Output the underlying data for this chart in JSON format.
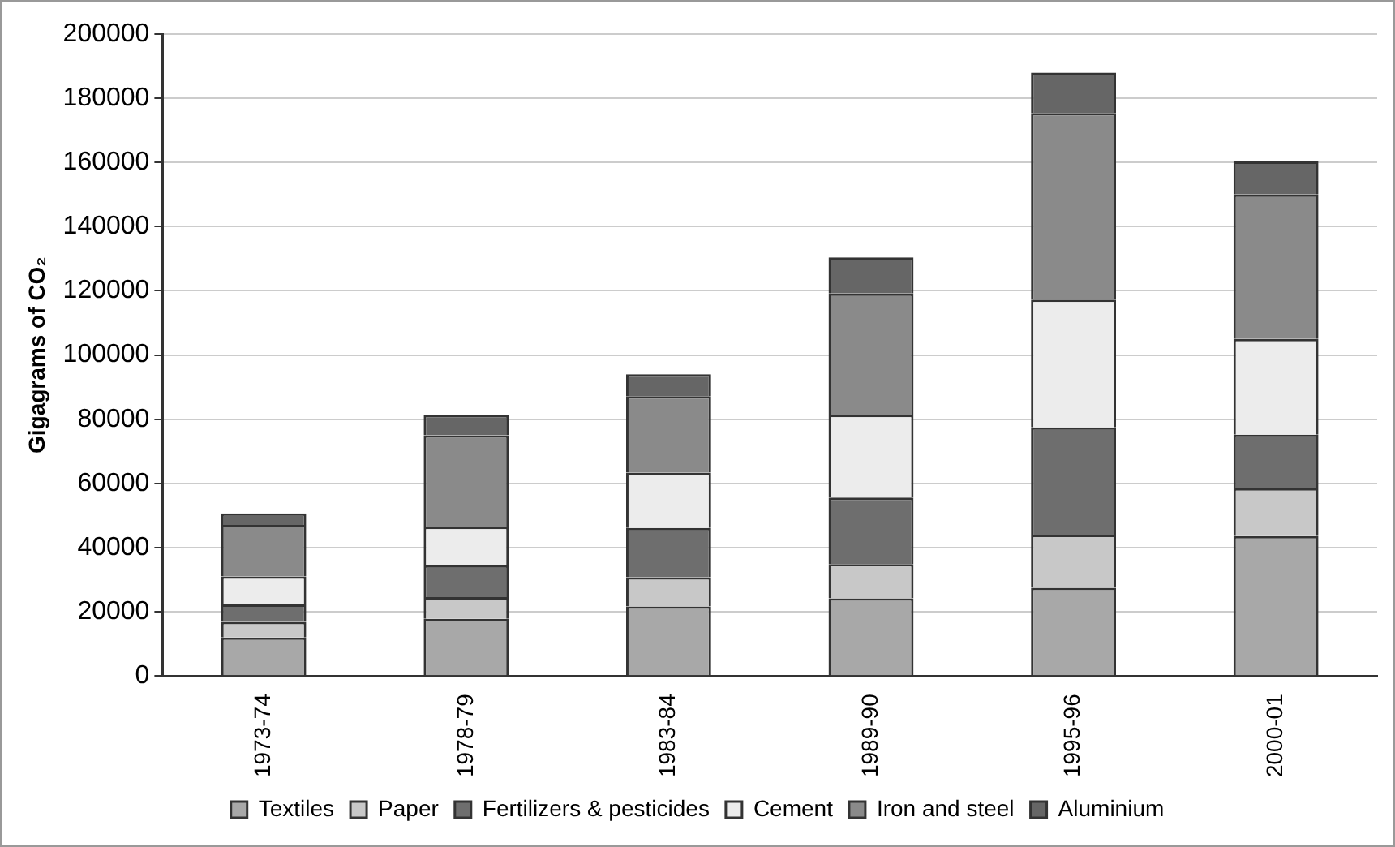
{
  "chart_data": {
    "type": "bar",
    "stacked": true,
    "ylabel": "Gigagrams of CO₂",
    "categories": [
      "1973-74",
      "1978-79",
      "1983-84",
      "1989-90",
      "1995-96",
      "2000-01"
    ],
    "series": [
      {
        "name": "Textiles",
        "color": "#a8a8a8",
        "values": [
          12000,
          17800,
          21700,
          24200,
          27500,
          43600
        ]
      },
      {
        "name": "Paper",
        "color": "#c8c8c8",
        "values": [
          4900,
          6800,
          9100,
          10700,
          16500,
          14900
        ]
      },
      {
        "name": "Fertilizers & pesticides",
        "color": "#6e6e6e",
        "values": [
          5400,
          9900,
          15300,
          20700,
          33500,
          16700
        ]
      },
      {
        "name": "Cement",
        "color": "#ececec",
        "values": [
          8700,
          12000,
          17300,
          25800,
          39800,
          29800
        ]
      },
      {
        "name": "Iron and steel",
        "color": "#8a8a8a",
        "values": [
          16100,
          28500,
          23800,
          37800,
          58100,
          45000
        ]
      },
      {
        "name": "Aluminium",
        "color": "#666666",
        "values": [
          3600,
          6400,
          6800,
          11200,
          12600,
          10300
        ]
      }
    ],
    "ylim": [
      0,
      200000
    ],
    "yticks": [
      0,
      20000,
      40000,
      60000,
      80000,
      100000,
      120000,
      140000,
      160000,
      180000,
      200000
    ],
    "grid": "y",
    "legend": "bottom"
  }
}
